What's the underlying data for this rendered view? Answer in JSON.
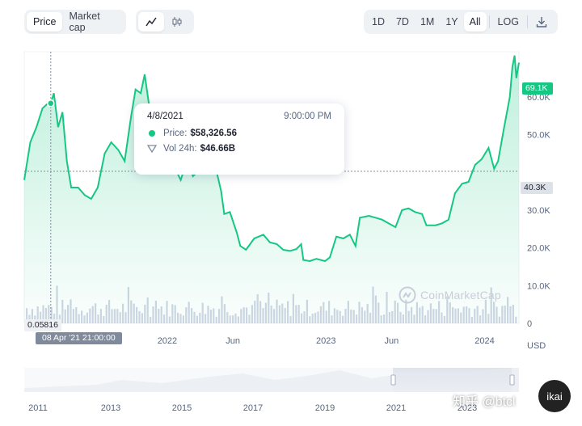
{
  "toolbar": {
    "type_tabs": [
      "Price",
      "Market cap"
    ],
    "active_type": "Price",
    "chart_styles": [
      "line-chart-icon",
      "candlestick-icon"
    ],
    "active_style": "line-chart-icon",
    "ranges": [
      "1D",
      "7D",
      "1M",
      "1Y",
      "All"
    ],
    "active_range": "All",
    "log_label": "LOG",
    "download_icon": "download-icon"
  },
  "tooltip": {
    "date": "4/8/2021",
    "time": "9:00:00 PM",
    "price_label": "Price:",
    "price_value": "$58,326.56",
    "vol_label": "Vol 24h:",
    "vol_value": "$46.66B"
  },
  "badges": {
    "current_price": "69.1K",
    "reference_price": "40.3K",
    "low_value": "0.05816",
    "hover_date": "08 Apr '21 21:00:00"
  },
  "axis": {
    "currency_label": "USD",
    "y_ticks": [
      {
        "label": "60.0K",
        "value": 60000
      },
      {
        "label": "50.0K",
        "value": 50000
      },
      {
        "label": "30.0K",
        "value": 30000
      },
      {
        "label": "20.0K",
        "value": 20000
      },
      {
        "label": "10.0K",
        "value": 10000
      },
      {
        "label": "0",
        "value": 0
      }
    ],
    "x_ticks": [
      "2022",
      "Jun",
      "2023",
      "Jun",
      "2024"
    ],
    "navigator_ticks": [
      "2011",
      "2013",
      "2015",
      "2017",
      "2019",
      "2021",
      "2023"
    ]
  },
  "watermark": "CoinMarketCap",
  "overlay": {
    "site": "知乎 @btcl",
    "avatar": "ikai"
  },
  "colors": {
    "line": "#16c784",
    "tooltip_dot": "#16c784",
    "current_badge": "#16c784",
    "volume_bars": "#cfd6e4"
  },
  "chart_data": {
    "type": "area",
    "title": "",
    "ylabel": "USD",
    "ylim": [
      0,
      72000
    ],
    "x_range": [
      "2021-02-06",
      "2024-03-20"
    ],
    "x": [
      "2021-02-06",
      "2021-02-20",
      "2021-03-06",
      "2021-03-20",
      "2021-04-03",
      "2021-04-08",
      "2021-04-15",
      "2021-04-25",
      "2021-05-05",
      "2021-05-15",
      "2021-05-25",
      "2021-06-10",
      "2021-06-25",
      "2021-07-10",
      "2021-07-25",
      "2021-08-10",
      "2021-08-25",
      "2021-09-10",
      "2021-09-25",
      "2021-10-10",
      "2021-10-20",
      "2021-11-01",
      "2021-11-10",
      "2021-11-20",
      "2021-12-01",
      "2021-12-15",
      "2022-01-01",
      "2022-01-15",
      "2022-02-01",
      "2022-02-15",
      "2022-03-01",
      "2022-03-15",
      "2022-03-28",
      "2022-04-10",
      "2022-04-25",
      "2022-05-05",
      "2022-05-12",
      "2022-05-25",
      "2022-06-10",
      "2022-06-18",
      "2022-07-01",
      "2022-07-20",
      "2022-08-10",
      "2022-08-25",
      "2022-09-10",
      "2022-09-25",
      "2022-10-10",
      "2022-10-25",
      "2022-11-05",
      "2022-11-10",
      "2022-11-25",
      "2022-12-10",
      "2022-12-30",
      "2023-01-10",
      "2023-01-25",
      "2023-02-10",
      "2023-02-25",
      "2023-03-10",
      "2023-03-20",
      "2023-04-10",
      "2023-04-25",
      "2023-05-10",
      "2023-05-25",
      "2023-06-10",
      "2023-06-25",
      "2023-07-10",
      "2023-07-25",
      "2023-08-10",
      "2023-08-20",
      "2023-09-10",
      "2023-09-25",
      "2023-10-10",
      "2023-10-25",
      "2023-11-10",
      "2023-11-25",
      "2023-12-10",
      "2023-12-25",
      "2024-01-10",
      "2024-01-23",
      "2024-02-01",
      "2024-02-15",
      "2024-02-28",
      "2024-03-05",
      "2024-03-10",
      "2024-03-14",
      "2024-03-20"
    ],
    "series": [
      {
        "values": [
          38000,
          48000,
          52000,
          57000,
          58500,
          58326,
          61000,
          52000,
          56000,
          43000,
          36000,
          36000,
          34000,
          33000,
          36000,
          45000,
          48000,
          46000,
          43000,
          55000,
          62000,
          61000,
          66000,
          58000,
          56000,
          48000,
          47000,
          42000,
          38000,
          43000,
          39000,
          40500,
          47000,
          42000,
          40000,
          35000,
          29000,
          29500,
          24000,
          20500,
          19500,
          22500,
          23500,
          21500,
          21000,
          19500,
          19200,
          19700,
          21000,
          16800,
          16500,
          17100,
          16500,
          17500,
          23000,
          22500,
          23500,
          20500,
          28000,
          28500,
          28000,
          27500,
          26500,
          25500,
          30000,
          30500,
          29500,
          29000,
          26000,
          26000,
          26500,
          27500,
          34500,
          37000,
          37500,
          42000,
          43500,
          46500,
          41000,
          43000,
          52000,
          60000,
          68000,
          71000,
          65000,
          69100
        ]
      }
    ],
    "volume_note": "24h volume bars shown in gray along the bottom"
  }
}
